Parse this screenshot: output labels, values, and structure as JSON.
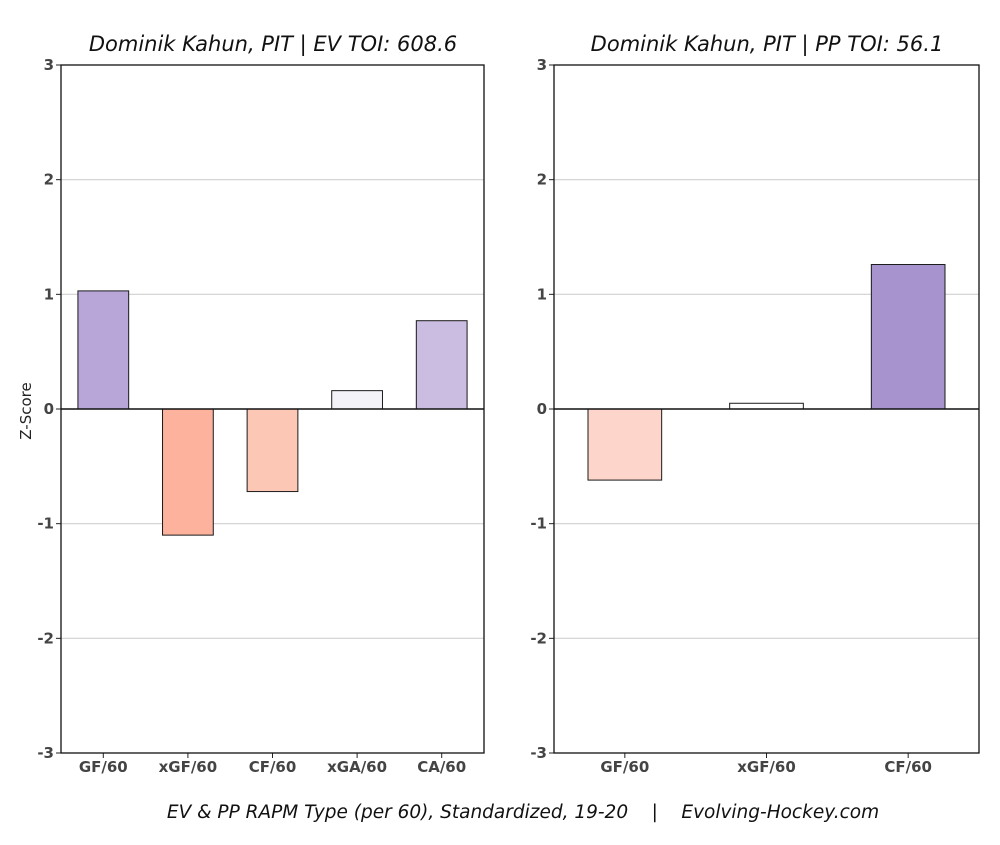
{
  "caption": "EV & PP RAPM Type (per 60), Standardized, 19-20    |    Evolving-Hockey.com",
  "chart_data": [
    {
      "type": "bar",
      "title": "Dominik Kahun, PIT  |  EV TOI: 608.6",
      "ylabel": "Z-Score",
      "xlabel": "",
      "ylim": [
        -3,
        3
      ],
      "yticks": [
        3,
        2,
        1,
        0,
        -1,
        -2,
        -3
      ],
      "ytick_labels": [
        "3",
        "2",
        "1",
        "0",
        "-1",
        "-2",
        "-3"
      ],
      "grid": "horizontal",
      "categories": [
        "GF/60",
        "xGF/60",
        "CF/60",
        "xGA/60",
        "CA/60"
      ],
      "values": [
        1.03,
        -1.1,
        -0.72,
        0.16,
        0.77
      ],
      "colors": [
        "#b8a6d9",
        "#fcb29c",
        "#fdc7b6",
        "#f3f2f8",
        "#cbbde2"
      ]
    },
    {
      "type": "bar",
      "title": "Dominik Kahun, PIT  |  PP TOI: 56.1",
      "ylabel": "",
      "xlabel": "",
      "ylim": [
        -3,
        3
      ],
      "yticks": [
        3,
        2,
        1,
        0,
        -1,
        -2,
        -3
      ],
      "ytick_labels": [
        "3",
        "2",
        "1",
        "0",
        "-1",
        "-2",
        "-3"
      ],
      "grid": "horizontal",
      "categories": [
        "GF/60",
        "xGF/60",
        "CF/60"
      ],
      "values": [
        -0.62,
        0.05,
        1.26
      ],
      "colors": [
        "#fdd5ca",
        "#ffffff",
        "#a794cf"
      ]
    }
  ]
}
